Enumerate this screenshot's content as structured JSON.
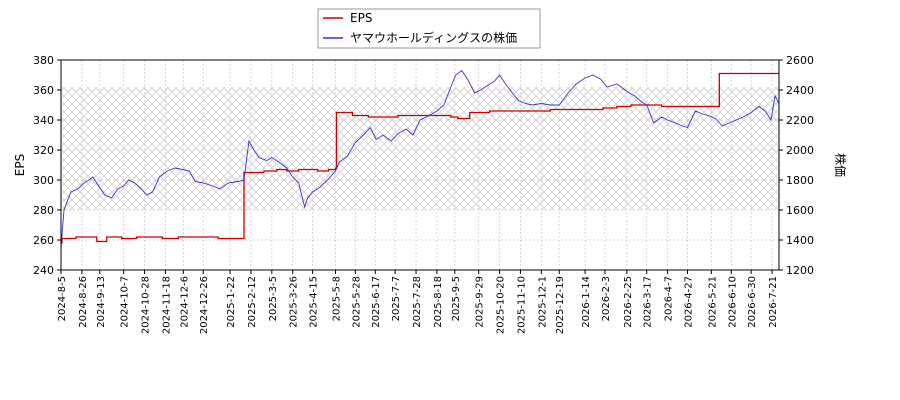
{
  "chart_data": {
    "type": "line",
    "legend": {
      "placement": "top-center",
      "entries": [
        "EPS",
        "ヤマウホールディングスの株価"
      ]
    },
    "left_axis": {
      "label": "EPS",
      "ylim": [
        240,
        380
      ],
      "ticks": [
        "240",
        "260",
        "280",
        "300",
        "320",
        "340",
        "360",
        "380"
      ]
    },
    "right_axis": {
      "label": "株価",
      "ylim": [
        1200,
        2600
      ],
      "ticks": [
        "1200",
        "1400",
        "1600",
        "1800",
        "2000",
        "2200",
        "2400",
        "2600"
      ]
    },
    "xlim": [
      "2024-08-05",
      "2026-07-28"
    ],
    "x_ticks": [
      "2024-8-5",
      "2024-8-26",
      "2024-9-13",
      "2024-10-7",
      "2024-10-28",
      "2024-11-18",
      "2024-12-6",
      "2024-12-26",
      "2025-1-22",
      "2025-2-12",
      "2025-3-5",
      "2025-3-26",
      "2025-4-15",
      "2025-5-8",
      "2025-5-28",
      "2025-6-17",
      "2025-7-7",
      "2025-7-28",
      "2025-8-18",
      "2025-9-5",
      "2025-9-29",
      "2025-10-20",
      "2025-11-10",
      "2025-12-1",
      "2025-12-19",
      "2026-1-14",
      "2026-2-3",
      "2026-2-25",
      "2026-3-17",
      "2026-4-7",
      "2026-4-27",
      "2026-5-21",
      "2026-6-10",
      "2026-6-30",
      "2026-7-21"
    ],
    "hatched_band": {
      "axis": "right",
      "range": [
        1600,
        2420
      ]
    },
    "grid": true,
    "series": [
      {
        "name": "EPS",
        "axis": "left",
        "color": "#cc0000",
        "step": true,
        "points": [
          [
            "2024-08-05",
            258
          ],
          [
            "2024-08-06",
            261
          ],
          [
            "2024-08-20",
            262
          ],
          [
            "2024-09-04",
            262
          ],
          [
            "2024-09-10",
            259
          ],
          [
            "2024-09-20",
            262
          ],
          [
            "2024-10-05",
            261
          ],
          [
            "2024-10-20",
            262
          ],
          [
            "2024-11-05",
            262
          ],
          [
            "2024-11-15",
            261
          ],
          [
            "2024-12-01",
            262
          ],
          [
            "2024-12-20",
            262
          ],
          [
            "2025-01-10",
            261
          ],
          [
            "2025-02-04",
            261
          ],
          [
            "2025-02-05",
            305
          ],
          [
            "2025-02-25",
            306
          ],
          [
            "2025-03-10",
            307
          ],
          [
            "2025-03-20",
            306
          ],
          [
            "2025-04-01",
            307
          ],
          [
            "2025-04-20",
            306
          ],
          [
            "2025-05-01",
            307
          ],
          [
            "2025-05-08",
            308
          ],
          [
            "2025-05-09",
            345
          ],
          [
            "2025-05-25",
            343
          ],
          [
            "2025-06-10",
            342
          ],
          [
            "2025-06-25",
            342
          ],
          [
            "2025-07-10",
            343
          ],
          [
            "2025-07-25",
            343
          ],
          [
            "2025-08-10",
            343
          ],
          [
            "2025-08-25",
            343
          ],
          [
            "2025-09-01",
            342
          ],
          [
            "2025-09-08",
            341
          ],
          [
            "2025-09-20",
            345
          ],
          [
            "2025-10-10",
            346
          ],
          [
            "2025-11-01",
            346
          ],
          [
            "2025-11-20",
            346
          ],
          [
            "2025-12-10",
            347
          ],
          [
            "2026-01-01",
            347
          ],
          [
            "2026-01-20",
            347
          ],
          [
            "2026-02-01",
            348
          ],
          [
            "2026-02-15",
            349
          ],
          [
            "2026-03-01",
            350
          ],
          [
            "2026-03-15",
            350
          ],
          [
            "2026-04-01",
            349
          ],
          [
            "2026-04-20",
            349
          ],
          [
            "2026-05-10",
            349
          ],
          [
            "2026-05-28",
            349
          ],
          [
            "2026-05-29",
            371
          ],
          [
            "2026-07-28",
            371
          ]
        ]
      },
      {
        "name": "ヤマウホールディングスの株価",
        "axis": "right",
        "color": "#3333cc",
        "points": [
          [
            "2024-08-05",
            1350
          ],
          [
            "2024-08-08",
            1600
          ],
          [
            "2024-08-15",
            1720
          ],
          [
            "2024-08-22",
            1740
          ],
          [
            "2024-08-28",
            1780
          ],
          [
            "2024-09-02",
            1800
          ],
          [
            "2024-09-06",
            1820
          ],
          [
            "2024-09-10",
            1780
          ],
          [
            "2024-09-18",
            1700
          ],
          [
            "2024-09-25",
            1680
          ],
          [
            "2024-10-01",
            1740
          ],
          [
            "2024-10-07",
            1760
          ],
          [
            "2024-10-12",
            1800
          ],
          [
            "2024-10-18",
            1780
          ],
          [
            "2024-10-25",
            1740
          ],
          [
            "2024-10-30",
            1700
          ],
          [
            "2024-11-05",
            1720
          ],
          [
            "2024-11-12",
            1820
          ],
          [
            "2024-11-20",
            1860
          ],
          [
            "2024-11-28",
            1880
          ],
          [
            "2024-12-05",
            1870
          ],
          [
            "2024-12-12",
            1860
          ],
          [
            "2024-12-18",
            1790
          ],
          [
            "2024-12-26",
            1780
          ],
          [
            "2025-01-05",
            1760
          ],
          [
            "2025-01-12",
            1740
          ],
          [
            "2025-01-20",
            1780
          ],
          [
            "2025-01-30",
            1790
          ],
          [
            "2025-02-05",
            1800
          ],
          [
            "2025-02-10",
            2060
          ],
          [
            "2025-02-15",
            2000
          ],
          [
            "2025-02-20",
            1950
          ],
          [
            "2025-02-28",
            1930
          ],
          [
            "2025-03-05",
            1950
          ],
          [
            "2025-03-12",
            1920
          ],
          [
            "2025-03-20",
            1880
          ],
          [
            "2025-03-26",
            1820
          ],
          [
            "2025-04-01",
            1780
          ],
          [
            "2025-04-07",
            1620
          ],
          [
            "2025-04-10",
            1680
          ],
          [
            "2025-04-15",
            1720
          ],
          [
            "2025-04-22",
            1750
          ],
          [
            "2025-04-30",
            1800
          ],
          [
            "2025-05-08",
            1860
          ],
          [
            "2025-05-12",
            1920
          ],
          [
            "2025-05-20",
            1960
          ],
          [
            "2025-05-28",
            2050
          ],
          [
            "2025-06-05",
            2100
          ],
          [
            "2025-06-12",
            2150
          ],
          [
            "2025-06-18",
            2070
          ],
          [
            "2025-06-25",
            2100
          ],
          [
            "2025-07-03",
            2060
          ],
          [
            "2025-07-10",
            2110
          ],
          [
            "2025-07-18",
            2140
          ],
          [
            "2025-07-25",
            2100
          ],
          [
            "2025-08-01",
            2200
          ],
          [
            "2025-08-10",
            2230
          ],
          [
            "2025-08-18",
            2260
          ],
          [
            "2025-08-25",
            2300
          ],
          [
            "2025-09-01",
            2420
          ],
          [
            "2025-09-06",
            2500
          ],
          [
            "2025-09-12",
            2530
          ],
          [
            "2025-09-18",
            2470
          ],
          [
            "2025-09-25",
            2380
          ],
          [
            "2025-10-01",
            2400
          ],
          [
            "2025-10-08",
            2430
          ],
          [
            "2025-10-15",
            2460
          ],
          [
            "2025-10-20",
            2500
          ],
          [
            "2025-10-26",
            2440
          ],
          [
            "2025-11-02",
            2380
          ],
          [
            "2025-11-08",
            2330
          ],
          [
            "2025-11-15",
            2310
          ],
          [
            "2025-11-22",
            2300
          ],
          [
            "2025-12-01",
            2310
          ],
          [
            "2025-12-10",
            2300
          ],
          [
            "2025-12-19",
            2300
          ],
          [
            "2025-12-28",
            2380
          ],
          [
            "2026-01-05",
            2440
          ],
          [
            "2026-01-14",
            2480
          ],
          [
            "2026-01-22",
            2500
          ],
          [
            "2026-01-30",
            2470
          ],
          [
            "2026-02-05",
            2420
          ],
          [
            "2026-02-15",
            2440
          ],
          [
            "2026-02-25",
            2390
          ],
          [
            "2026-03-05",
            2360
          ],
          [
            "2026-03-12",
            2320
          ],
          [
            "2026-03-17",
            2300
          ],
          [
            "2026-03-24",
            2180
          ],
          [
            "2026-04-01",
            2220
          ],
          [
            "2026-04-07",
            2200
          ],
          [
            "2026-04-15",
            2180
          ],
          [
            "2026-04-22",
            2160
          ],
          [
            "2026-04-27",
            2150
          ],
          [
            "2026-05-05",
            2260
          ],
          [
            "2026-05-12",
            2240
          ],
          [
            "2026-05-18",
            2230
          ],
          [
            "2026-05-25",
            2210
          ],
          [
            "2026-06-01",
            2160
          ],
          [
            "2026-06-08",
            2180
          ],
          [
            "2026-06-15",
            2200
          ],
          [
            "2026-06-22",
            2220
          ],
          [
            "2026-06-30",
            2250
          ],
          [
            "2026-07-08",
            2290
          ],
          [
            "2026-07-14",
            2260
          ],
          [
            "2026-07-20",
            2200
          ],
          [
            "2026-07-24",
            2360
          ],
          [
            "2026-07-28",
            2310
          ]
        ]
      }
    ]
  }
}
